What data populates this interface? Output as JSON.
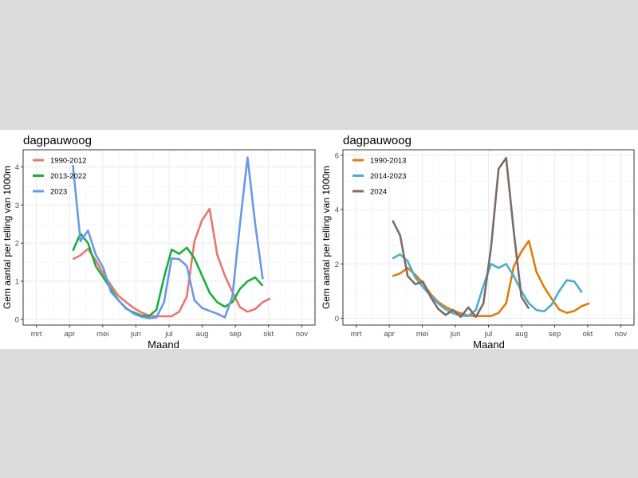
{
  "chart_data": [
    {
      "type": "line",
      "title": "dagpauwoog",
      "xlabel": "Maand",
      "ylabel": "Gem aantal per telling van 1000m",
      "x_ticks": [
        {
          "v": 3,
          "label": "mrt"
        },
        {
          "v": 4,
          "label": "apr"
        },
        {
          "v": 5,
          "label": "mei"
        },
        {
          "v": 6,
          "label": "jun"
        },
        {
          "v": 7,
          "label": "jul"
        },
        {
          "v": 8,
          "label": "aug"
        },
        {
          "v": 9,
          "label": "sep"
        },
        {
          "v": 10,
          "label": "okt"
        },
        {
          "v": 11,
          "label": "nov"
        }
      ],
      "y_ticks": [
        0,
        1,
        2,
        3,
        4
      ],
      "xlim": [
        2.6,
        11.4
      ],
      "ylim": [
        -0.15,
        4.45
      ],
      "grid": true,
      "legend_position": "top-left",
      "x_start": 4.1,
      "x_step": 0.229,
      "series": [
        {
          "name": "1990-2012",
          "color": "#E8776F",
          "values": [
            1.58,
            1.68,
            1.85,
            1.55,
            1.2,
            0.9,
            0.62,
            0.45,
            0.3,
            0.18,
            0.1,
            0.08,
            0.08,
            0.08,
            0.2,
            0.6,
            2.05,
            2.6,
            2.9,
            1.7,
            1.15,
            0.72,
            0.32,
            0.2,
            0.27,
            0.45,
            0.55
          ]
        },
        {
          "name": "2013-2022",
          "color": "#1AAF3C",
          "values": [
            1.8,
            2.25,
            2.0,
            1.4,
            1.1,
            0.8,
            0.5,
            0.28,
            0.18,
            0.1,
            0.08,
            0.25,
            1.1,
            1.83,
            1.72,
            1.88,
            1.6,
            1.15,
            0.7,
            0.45,
            0.33,
            0.45,
            0.8,
            1.0,
            1.1,
            0.88
          ]
        },
        {
          "name": "2023",
          "color": "#6A98E8",
          "values": [
            4.05,
            2.05,
            2.33,
            1.7,
            1.35,
            0.72,
            0.5,
            0.3,
            0.15,
            0.07,
            0.03,
            0.05,
            0.45,
            1.6,
            1.58,
            1.4,
            0.5,
            0.3,
            0.22,
            0.15,
            0.05,
            0.6,
            2.5,
            4.25,
            2.5,
            1.05
          ]
        }
      ]
    },
    {
      "type": "line",
      "title": "dagpauwoog",
      "xlabel": "Maand",
      "ylabel": "Gem aantal per telling van 1000m",
      "x_ticks": [
        {
          "v": 3,
          "label": "mrt"
        },
        {
          "v": 4,
          "label": "apr"
        },
        {
          "v": 5,
          "label": "mei"
        },
        {
          "v": 6,
          "label": "jun"
        },
        {
          "v": 7,
          "label": "jul"
        },
        {
          "v": 8,
          "label": "aug"
        },
        {
          "v": 9,
          "label": "sep"
        },
        {
          "v": 10,
          "label": "okt"
        },
        {
          "v": 11,
          "label": "nov"
        }
      ],
      "y_ticks": [
        0,
        2,
        4,
        6
      ],
      "xlim": [
        2.6,
        11.4
      ],
      "ylim": [
        -0.25,
        6.2
      ],
      "grid": true,
      "legend_position": "top-left",
      "x_start": 4.1,
      "x_step": 0.229,
      "series": [
        {
          "name": "1990-2013",
          "color": "#DE7C10",
          "values": [
            1.55,
            1.65,
            1.85,
            1.6,
            1.3,
            0.9,
            0.6,
            0.42,
            0.28,
            0.18,
            0.1,
            0.08,
            0.08,
            0.08,
            0.2,
            0.55,
            1.9,
            2.45,
            2.85,
            1.7,
            1.15,
            0.72,
            0.32,
            0.2,
            0.27,
            0.45,
            0.55
          ]
        },
        {
          "name": "2014-2023",
          "color": "#4AAFCC",
          "values": [
            2.2,
            2.35,
            2.1,
            1.5,
            1.15,
            0.85,
            0.55,
            0.33,
            0.18,
            0.1,
            0.08,
            0.3,
            1.2,
            2.0,
            1.85,
            2.0,
            1.55,
            1.0,
            0.55,
            0.3,
            0.25,
            0.5,
            1.0,
            1.4,
            1.35,
            0.95
          ]
        },
        {
          "name": "2024",
          "color": "#7C6C65",
          "values": [
            3.6,
            3.05,
            1.55,
            1.25,
            1.35,
            0.8,
            0.35,
            0.12,
            0.3,
            0.05,
            0.4,
            0.05,
            0.55,
            2.6,
            5.5,
            5.9,
            3.2,
            0.8,
            0.35
          ]
        }
      ]
    }
  ]
}
